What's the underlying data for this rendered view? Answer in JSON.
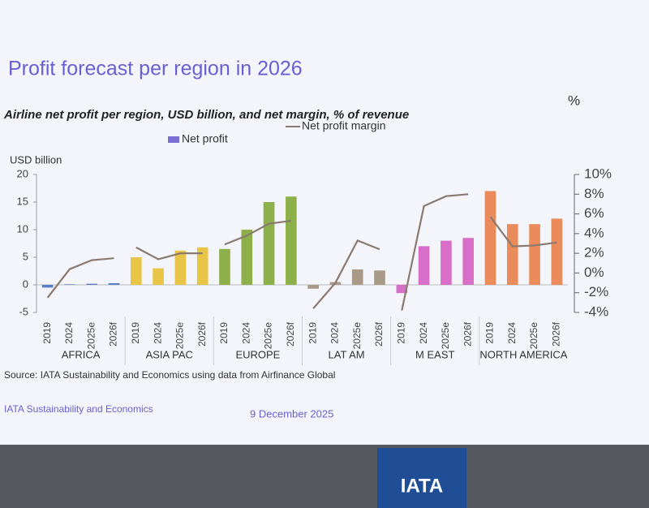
{
  "chart_data": {
    "type": "bar-line",
    "title": "Profit forecast per region in 2026",
    "subtitle": "Airline net profit per region, USD billion, and net margin, % of revenue",
    "y_label": "USD billion",
    "y2_label": "%",
    "categories": [
      "2019",
      "2024",
      "2025e",
      "2026f"
    ],
    "series": [
      {
        "name": "Net profit",
        "color": "#7b6fd6"
      },
      {
        "name": "Net profit margin",
        "color": "#8a7a70",
        "axis": "y2"
      }
    ],
    "groups": [
      {
        "name": "AFRICA",
        "color": "#5b7fc4",
        "values": [
          -0.5,
          0.1,
          0.2,
          0.3
        ],
        "margin": [
          -2.5,
          0.4,
          1.3,
          1.5
        ]
      },
      {
        "name": "ASIA PAC",
        "color": "#e8c547",
        "values": [
          5,
          3,
          6.2,
          6.8
        ],
        "margin": [
          2.6,
          1.4,
          2.0,
          2.0
        ]
      },
      {
        "name": "EUROPE",
        "color": "#8db04a",
        "values": [
          6.5,
          10,
          15,
          16
        ],
        "margin": [
          2.9,
          3.8,
          5.0,
          5.3
        ]
      },
      {
        "name": "LAT AM",
        "color": "#a89a86",
        "values": [
          -0.7,
          0.5,
          2.8,
          2.6
        ],
        "margin": [
          -3.6,
          -1.0,
          3.3,
          2.4
        ]
      },
      {
        "name": "M EAST",
        "color": "#d76fc8",
        "values": [
          -1.5,
          7,
          8,
          8.5
        ],
        "margin": [
          -3.8,
          6.8,
          7.8,
          8.0
        ]
      },
      {
        "name": "NORTH AMERICA",
        "color": "#e98b5a",
        "values": [
          17,
          11,
          11,
          12
        ],
        "margin": [
          5.7,
          2.7,
          2.8,
          3.1
        ]
      }
    ],
    "ylim": [
      -5,
      20
    ],
    "yticks": [
      -5,
      0,
      5,
      10,
      15,
      20
    ],
    "y2lim": [
      -4,
      10
    ],
    "y2ticks": [
      {
        "value": -4,
        "label": "-4%"
      },
      {
        "value": -2,
        "label": "-2%"
      },
      {
        "value": 0,
        "label": "0%"
      },
      {
        "value": 2,
        "label": "2%"
      },
      {
        "value": 4,
        "label": "4%"
      },
      {
        "value": 6,
        "label": "6%"
      },
      {
        "value": 8,
        "label": "8%"
      },
      {
        "value": 10,
        "label": "10%"
      }
    ],
    "source": "Source: IATA Sustainability and Economics using data from Airfinance Global",
    "footer": "IATA Sustainability and Economics",
    "date": "9 December 2025",
    "logo": "IATA"
  }
}
